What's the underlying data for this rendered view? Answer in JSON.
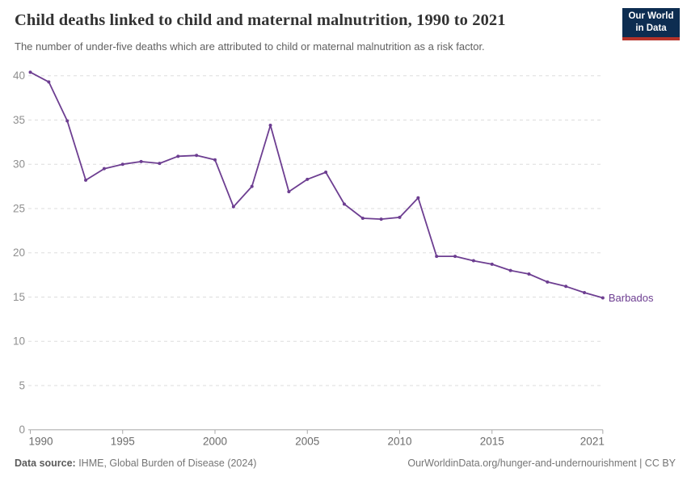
{
  "header": {
    "title": "Child deaths linked to child and maternal malnutrition, 1990 to 2021",
    "subtitle": "The number of under-five deaths which are attributed to child or maternal malnutrition as a risk factor.",
    "logo": {
      "line1": "Our World",
      "line2": "in Data"
    }
  },
  "colors": {
    "series": "#6d3e91",
    "grid": "#dddddd",
    "axis": "#a8a8a8",
    "y_tick_label": "#8f8f8f",
    "x_tick_label": "#6b6b6b",
    "title": "#333333",
    "subtitle": "#616161",
    "footer": "#757575",
    "footer_bold": "#5b5b5b",
    "logo_bg": "#0d2d51",
    "logo_accent": "#b5332a"
  },
  "chart_data": {
    "type": "line",
    "title": "Child deaths linked to child and maternal malnutrition, 1990 to 2021",
    "xlabel": "",
    "ylabel": "",
    "x": [
      1990,
      1991,
      1992,
      1993,
      1994,
      1995,
      1996,
      1997,
      1998,
      1999,
      2000,
      2001,
      2002,
      2003,
      2004,
      2005,
      2006,
      2007,
      2008,
      2009,
      2010,
      2011,
      2012,
      2013,
      2014,
      2015,
      2016,
      2017,
      2018,
      2019,
      2020,
      2021
    ],
    "series": [
      {
        "name": "Barbados",
        "color": "#6d3e91",
        "values": [
          40.4,
          39.3,
          34.9,
          28.2,
          29.5,
          30.0,
          30.3,
          30.1,
          30.9,
          31.0,
          30.5,
          25.2,
          27.5,
          34.4,
          26.9,
          28.3,
          29.1,
          25.5,
          23.9,
          23.8,
          24.0,
          26.2,
          19.6,
          19.6,
          19.1,
          18.7,
          18.0,
          17.6,
          16.7,
          16.2,
          15.5,
          14.9
        ]
      }
    ],
    "xlim": [
      1990,
      2021
    ],
    "ylim": [
      0,
      40
    ],
    "x_ticks": [
      1990,
      1995,
      2000,
      2005,
      2010,
      2015,
      2021
    ],
    "y_ticks": [
      0,
      5,
      10,
      15,
      20,
      25,
      30,
      35,
      40
    ],
    "grid": "horizontal-dashed",
    "legend": "end-of-line-label",
    "end_label": "Barbados"
  },
  "footer": {
    "source_bold": "Data source:",
    "source_rest": " IHME, Global Burden of Disease (2024)",
    "attribution": "OurWorldinData.org/hunger-and-undernourishment | CC BY"
  }
}
